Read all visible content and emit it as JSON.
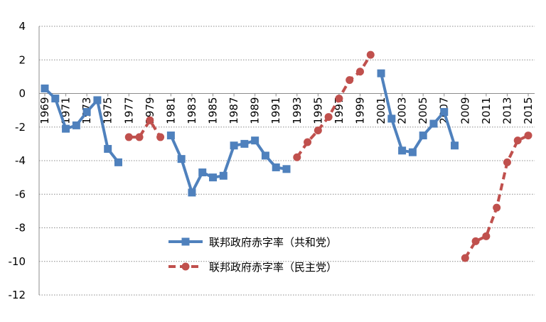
{
  "chart_data": {
    "type": "line",
    "title": "",
    "xlabel": "",
    "ylabel": "",
    "ylim": [
      -12,
      4
    ],
    "yticks": [
      4,
      2,
      0,
      -2,
      -4,
      -6,
      -8,
      -10,
      -12
    ],
    "xlim": [
      1969,
      2015
    ],
    "xticks": [
      1969,
      1971,
      1973,
      1975,
      1977,
      1979,
      1981,
      1983,
      1985,
      1987,
      1989,
      1991,
      1993,
      1995,
      1997,
      1999,
      2001,
      2003,
      2005,
      2007,
      2009,
      2011,
      2013,
      2015
    ],
    "grid": "horizontal-dotted",
    "legend_position": "lower-center",
    "series": [
      {
        "name": "联邦政府赤字率（共和党）",
        "color": "#4f81bd",
        "style": "solid",
        "marker": "square",
        "segments": [
          {
            "x": [
              1969,
              1970,
              1971,
              1972,
              1973,
              1974,
              1975,
              1976
            ],
            "y": [
              0.3,
              -0.3,
              -2.1,
              -1.9,
              -1.1,
              -0.4,
              -3.3,
              -4.1
            ]
          },
          {
            "x": [
              1981,
              1982,
              1983,
              1984,
              1985,
              1986,
              1987,
              1988,
              1989,
              1990,
              1991,
              1992
            ],
            "y": [
              -2.5,
              -3.9,
              -5.9,
              -4.7,
              -5.0,
              -4.9,
              -3.1,
              -3.0,
              -2.8,
              -3.7,
              -4.4,
              -4.5
            ]
          },
          {
            "x": [
              2001,
              2002,
              2003,
              2004,
              2005,
              2006,
              2007,
              2008
            ],
            "y": [
              1.2,
              -1.5,
              -3.4,
              -3.5,
              -2.5,
              -1.8,
              -1.1,
              -3.1
            ]
          }
        ]
      },
      {
        "name": "联邦政府赤字率（民主党）",
        "color": "#c0504d",
        "style": "dashed",
        "marker": "circle",
        "segments": [
          {
            "x": [
              1977,
              1978,
              1979,
              1980
            ],
            "y": [
              -2.6,
              -2.6,
              -1.6,
              -2.6
            ]
          },
          {
            "x": [
              1993,
              1994,
              1995,
              1996,
              1997,
              1998,
              1999,
              2000
            ],
            "y": [
              -3.8,
              -2.9,
              -2.2,
              -1.4,
              -0.3,
              0.8,
              1.3,
              2.3
            ]
          },
          {
            "x": [
              2009,
              2010,
              2011,
              2012,
              2013,
              2014,
              2015
            ],
            "y": [
              -9.8,
              -8.8,
              -8.5,
              -6.8,
              -4.1,
              -2.8,
              -2.5
            ]
          }
        ]
      }
    ]
  }
}
